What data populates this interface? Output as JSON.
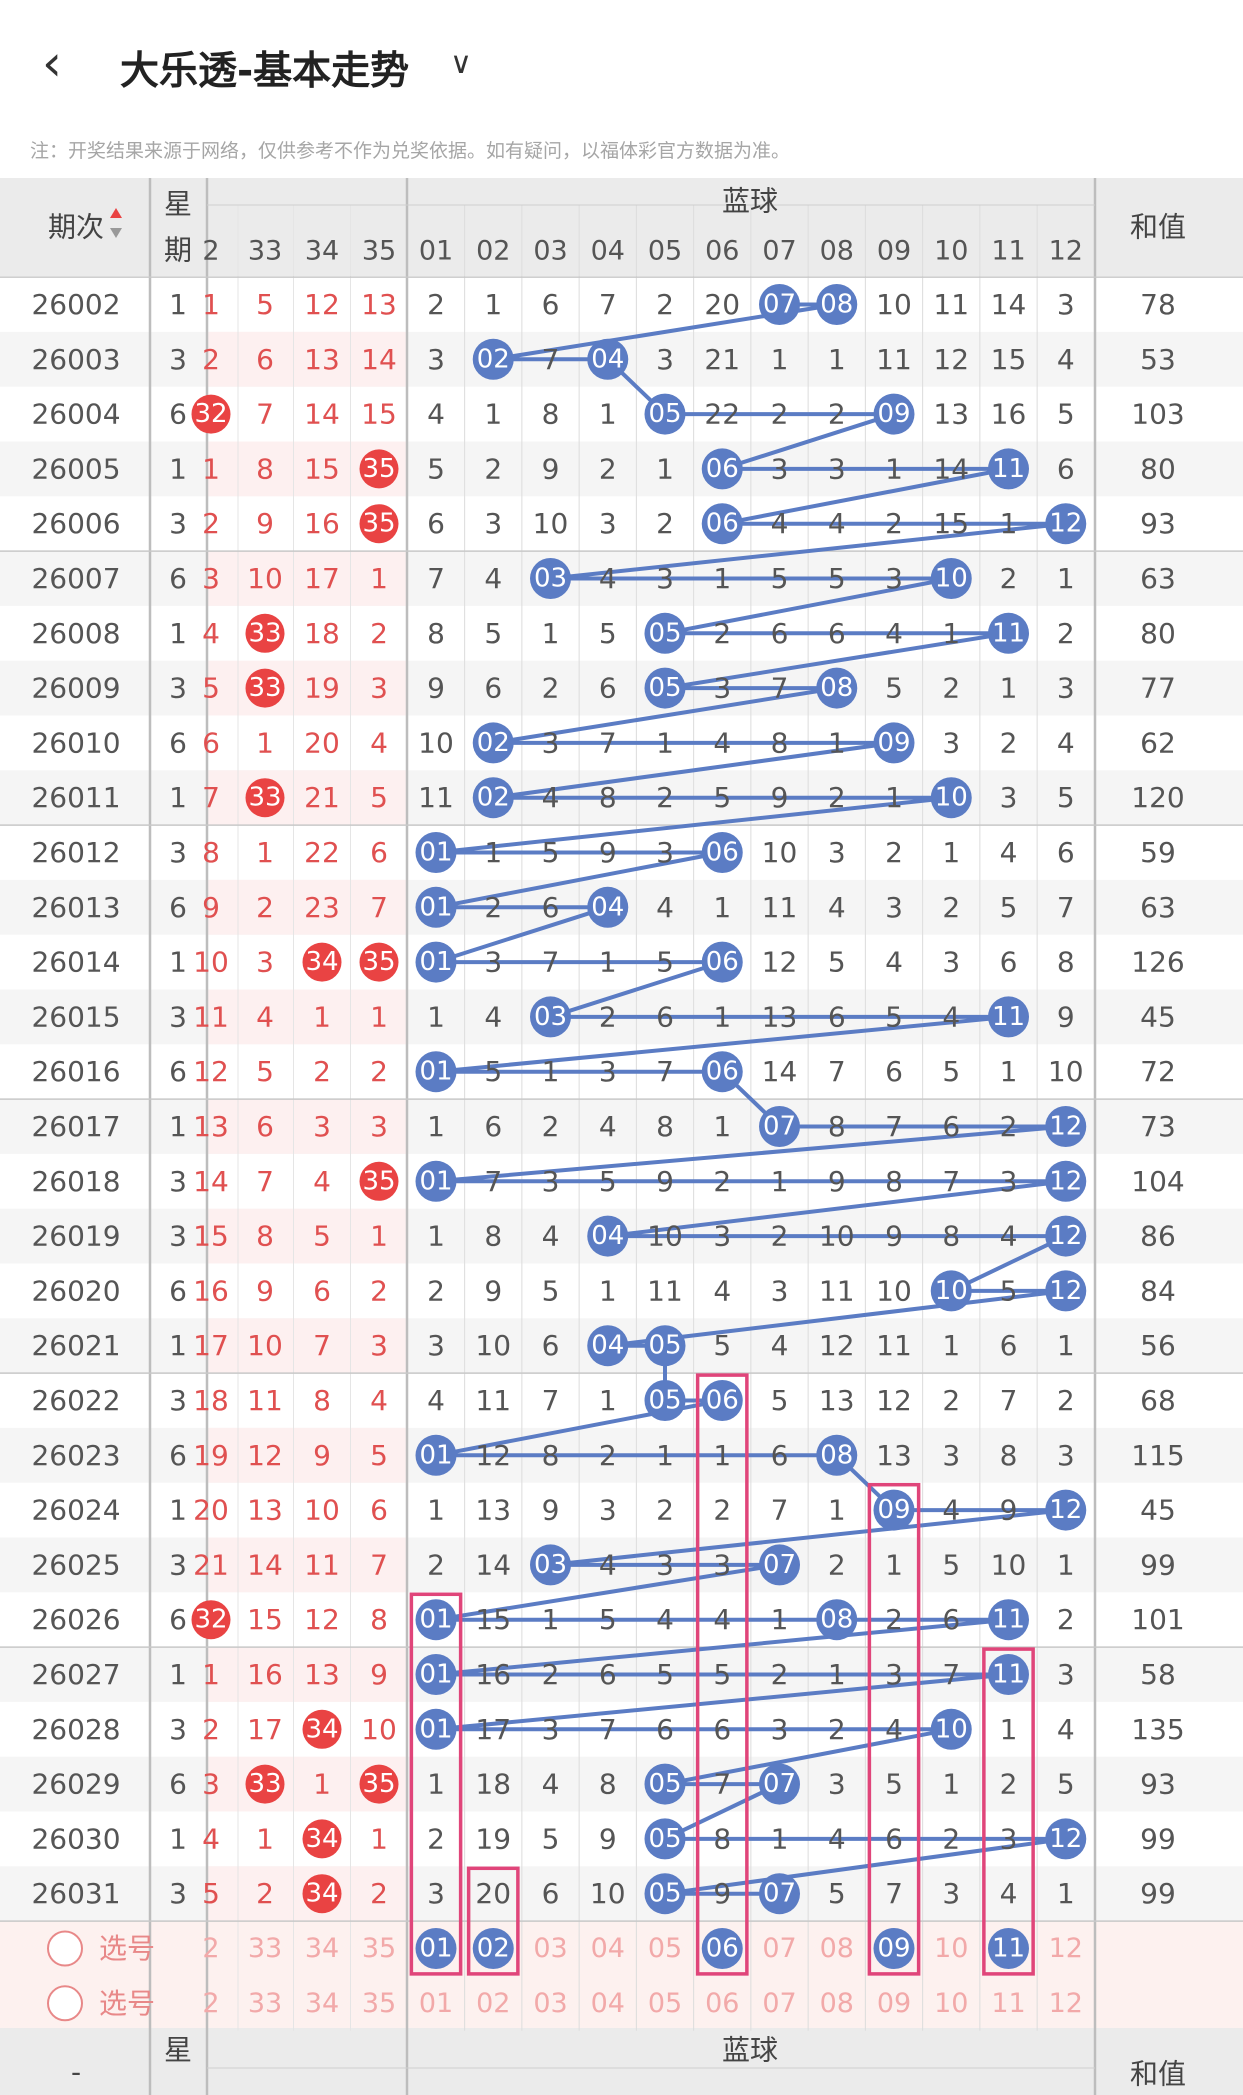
{
  "header": {
    "back_icon": "chevron-left-icon",
    "title": "大乐透-基本走势",
    "dropdown_icon": "chevron-down-icon",
    "note": "注：开奖结果来源于网络，仅供参考不作为兑奖依据。如有疑问，以福体彩官方数据为准。"
  },
  "table": {
    "col_issue": "期次",
    "sort_icon": "sort-icon",
    "col_week": "星\n期",
    "group_blue": "蓝球",
    "col_sum": "和值",
    "front_headers": [
      "2",
      "33",
      "34",
      "35"
    ],
    "blue_headers": [
      "01",
      "02",
      "03",
      "04",
      "05",
      "06",
      "07",
      "08",
      "09",
      "10",
      "11",
      "12"
    ],
    "rows": [
      {
        "issue": "26002",
        "week": "1",
        "front": [
          "1",
          "5",
          "12",
          "13"
        ],
        "front_hit": [
          false,
          false,
          false,
          false
        ],
        "blue": [
          "2",
          "1",
          "6",
          "7",
          "2",
          "20",
          "07",
          "08",
          "10",
          "11",
          "14",
          "3"
        ],
        "sum": "78"
      },
      {
        "issue": "26003",
        "week": "3",
        "front": [
          "2",
          "6",
          "13",
          "14"
        ],
        "front_hit": [
          false,
          false,
          false,
          false
        ],
        "blue": [
          "3",
          "02",
          "7",
          "04",
          "3",
          "21",
          "1",
          "1",
          "11",
          "12",
          "15",
          "4"
        ],
        "sum": "53"
      },
      {
        "issue": "26004",
        "week": "6",
        "front": [
          "32",
          "7",
          "14",
          "15"
        ],
        "front_hit": [
          true,
          false,
          false,
          false
        ],
        "blue": [
          "4",
          "1",
          "8",
          "1",
          "05",
          "22",
          "2",
          "2",
          "09",
          "13",
          "16",
          "5"
        ],
        "sum": "103"
      },
      {
        "issue": "26005",
        "week": "1",
        "front": [
          "1",
          "8",
          "15",
          "35"
        ],
        "front_hit": [
          false,
          false,
          false,
          true
        ],
        "blue": [
          "5",
          "2",
          "9",
          "2",
          "1",
          "06",
          "3",
          "3",
          "1",
          "14",
          "11",
          "6"
        ],
        "sum": "80"
      },
      {
        "issue": "26006",
        "week": "3",
        "front": [
          "2",
          "9",
          "16",
          "35"
        ],
        "front_hit": [
          false,
          false,
          false,
          true
        ],
        "blue": [
          "6",
          "3",
          "10",
          "3",
          "2",
          "06",
          "4",
          "4",
          "2",
          "15",
          "1",
          "12"
        ],
        "sum": "93"
      },
      {
        "issue": "26007",
        "week": "6",
        "front": [
          "3",
          "10",
          "17",
          "1"
        ],
        "front_hit": [
          false,
          false,
          false,
          false
        ],
        "blue": [
          "7",
          "4",
          "03",
          "4",
          "3",
          "1",
          "5",
          "5",
          "3",
          "10",
          "2",
          "1"
        ],
        "sum": "63"
      },
      {
        "issue": "26008",
        "week": "1",
        "front": [
          "4",
          "33",
          "18",
          "2"
        ],
        "front_hit": [
          false,
          true,
          false,
          false
        ],
        "blue": [
          "8",
          "5",
          "1",
          "5",
          "05",
          "2",
          "6",
          "6",
          "4",
          "1",
          "11",
          "2"
        ],
        "sum": "80"
      },
      {
        "issue": "26009",
        "week": "3",
        "front": [
          "5",
          "33",
          "19",
          "3"
        ],
        "front_hit": [
          false,
          true,
          false,
          false
        ],
        "blue": [
          "9",
          "6",
          "2",
          "6",
          "05",
          "3",
          "7",
          "08",
          "5",
          "2",
          "1",
          "3"
        ],
        "sum": "77"
      },
      {
        "issue": "26010",
        "week": "6",
        "front": [
          "6",
          "1",
          "20",
          "4"
        ],
        "front_hit": [
          false,
          false,
          false,
          false
        ],
        "blue": [
          "10",
          "02",
          "3",
          "7",
          "1",
          "4",
          "8",
          "1",
          "09",
          "3",
          "2",
          "4"
        ],
        "sum": "62"
      },
      {
        "issue": "26011",
        "week": "1",
        "front": [
          "7",
          "33",
          "21",
          "5"
        ],
        "front_hit": [
          false,
          true,
          false,
          false
        ],
        "blue": [
          "11",
          "02",
          "4",
          "8",
          "2",
          "5",
          "9",
          "2",
          "1",
          "10",
          "3",
          "5"
        ],
        "sum": "120"
      },
      {
        "issue": "26012",
        "week": "3",
        "front": [
          "8",
          "1",
          "22",
          "6"
        ],
        "front_hit": [
          false,
          false,
          false,
          false
        ],
        "blue": [
          "01",
          "1",
          "5",
          "9",
          "3",
          "06",
          "10",
          "3",
          "2",
          "1",
          "4",
          "6"
        ],
        "sum": "59"
      },
      {
        "issue": "26013",
        "week": "6",
        "front": [
          "9",
          "2",
          "23",
          "7"
        ],
        "front_hit": [
          false,
          false,
          false,
          false
        ],
        "blue": [
          "01",
          "2",
          "6",
          "04",
          "4",
          "1",
          "11",
          "4",
          "3",
          "2",
          "5",
          "7"
        ],
        "sum": "63"
      },
      {
        "issue": "26014",
        "week": "1",
        "front": [
          "10",
          "3",
          "34",
          "35"
        ],
        "front_hit": [
          false,
          false,
          true,
          true
        ],
        "blue": [
          "01",
          "3",
          "7",
          "1",
          "5",
          "06",
          "12",
          "5",
          "4",
          "3",
          "6",
          "8"
        ],
        "sum": "126"
      },
      {
        "issue": "26015",
        "week": "3",
        "front": [
          "11",
          "4",
          "1",
          "1"
        ],
        "front_hit": [
          false,
          false,
          false,
          false
        ],
        "blue": [
          "1",
          "4",
          "03",
          "2",
          "6",
          "1",
          "13",
          "6",
          "5",
          "4",
          "11",
          "9"
        ],
        "sum": "45"
      },
      {
        "issue": "26016",
        "week": "6",
        "front": [
          "12",
          "5",
          "2",
          "2"
        ],
        "front_hit": [
          false,
          false,
          false,
          false
        ],
        "blue": [
          "01",
          "5",
          "1",
          "3",
          "7",
          "06",
          "14",
          "7",
          "6",
          "5",
          "1",
          "10"
        ],
        "sum": "72"
      },
      {
        "issue": "26017",
        "week": "1",
        "front": [
          "13",
          "6",
          "3",
          "3"
        ],
        "front_hit": [
          false,
          false,
          false,
          false
        ],
        "blue": [
          "1",
          "6",
          "2",
          "4",
          "8",
          "1",
          "07",
          "8",
          "7",
          "6",
          "2",
          "12"
        ],
        "sum": "73"
      },
      {
        "issue": "26018",
        "week": "3",
        "front": [
          "14",
          "7",
          "4",
          "35"
        ],
        "front_hit": [
          false,
          false,
          false,
          true
        ],
        "blue": [
          "01",
          "7",
          "3",
          "5",
          "9",
          "2",
          "1",
          "9",
          "8",
          "7",
          "3",
          "12"
        ],
        "sum": "104"
      },
      {
        "issue": "26019",
        "week": "3",
        "front": [
          "15",
          "8",
          "5",
          "1"
        ],
        "front_hit": [
          false,
          false,
          false,
          false
        ],
        "blue": [
          "1",
          "8",
          "4",
          "04",
          "10",
          "3",
          "2",
          "10",
          "9",
          "8",
          "4",
          "12"
        ],
        "sum": "86"
      },
      {
        "issue": "26020",
        "week": "6",
        "front": [
          "16",
          "9",
          "6",
          "2"
        ],
        "front_hit": [
          false,
          false,
          false,
          false
        ],
        "blue": [
          "2",
          "9",
          "5",
          "1",
          "11",
          "4",
          "3",
          "11",
          "10",
          "10",
          "5",
          "12"
        ],
        "sum": "84"
      },
      {
        "issue": "26021",
        "week": "1",
        "front": [
          "17",
          "10",
          "7",
          "3"
        ],
        "front_hit": [
          false,
          false,
          false,
          false
        ],
        "blue": [
          "3",
          "10",
          "6",
          "04",
          "05",
          "5",
          "4",
          "12",
          "11",
          "1",
          "6",
          "1"
        ],
        "sum": "56"
      },
      {
        "issue": "26022",
        "week": "3",
        "front": [
          "18",
          "11",
          "8",
          "4"
        ],
        "front_hit": [
          false,
          false,
          false,
          false
        ],
        "blue": [
          "4",
          "11",
          "7",
          "1",
          "05",
          "06",
          "5",
          "13",
          "12",
          "2",
          "7",
          "2"
        ],
        "sum": "68"
      },
      {
        "issue": "26023",
        "week": "6",
        "front": [
          "19",
          "12",
          "9",
          "5"
        ],
        "front_hit": [
          false,
          false,
          false,
          false
        ],
        "blue": [
          "01",
          "12",
          "8",
          "2",
          "1",
          "1",
          "6",
          "08",
          "13",
          "3",
          "8",
          "3"
        ],
        "sum": "115"
      },
      {
        "issue": "26024",
        "week": "1",
        "front": [
          "20",
          "13",
          "10",
          "6"
        ],
        "front_hit": [
          false,
          false,
          false,
          false
        ],
        "blue": [
          "1",
          "13",
          "9",
          "3",
          "2",
          "2",
          "7",
          "1",
          "09",
          "4",
          "9",
          "12"
        ],
        "sum": "45"
      },
      {
        "issue": "26025",
        "week": "3",
        "front": [
          "21",
          "14",
          "11",
          "7"
        ],
        "front_hit": [
          false,
          false,
          false,
          false
        ],
        "blue": [
          "2",
          "14",
          "03",
          "4",
          "3",
          "3",
          "07",
          "2",
          "1",
          "5",
          "10",
          "1"
        ],
        "sum": "99"
      },
      {
        "issue": "26026",
        "week": "6",
        "front": [
          "32",
          "15",
          "12",
          "8"
        ],
        "front_hit": [
          true,
          false,
          false,
          false
        ],
        "blue": [
          "01",
          "15",
          "1",
          "5",
          "4",
          "4",
          "1",
          "08",
          "2",
          "6",
          "11",
          "2"
        ],
        "sum": "101"
      },
      {
        "issue": "26027",
        "week": "1",
        "front": [
          "1",
          "16",
          "13",
          "9"
        ],
        "front_hit": [
          false,
          false,
          false,
          false
        ],
        "blue": [
          "01",
          "16",
          "2",
          "6",
          "5",
          "5",
          "2",
          "1",
          "3",
          "7",
          "11",
          "3"
        ],
        "sum": "58"
      },
      {
        "issue": "26028",
        "week": "3",
        "front": [
          "2",
          "17",
          "34",
          "10"
        ],
        "front_hit": [
          false,
          false,
          true,
          false
        ],
        "blue": [
          "01",
          "17",
          "3",
          "7",
          "6",
          "6",
          "3",
          "2",
          "4",
          "10",
          "1",
          "4"
        ],
        "sum": "135"
      },
      {
        "issue": "26029",
        "week": "6",
        "front": [
          "3",
          "33",
          "1",
          "35"
        ],
        "front_hit": [
          false,
          true,
          false,
          true
        ],
        "blue": [
          "1",
          "18",
          "4",
          "8",
          "05",
          "7",
          "07",
          "3",
          "5",
          "1",
          "2",
          "5"
        ],
        "sum": "93"
      },
      {
        "issue": "26030",
        "week": "1",
        "front": [
          "4",
          "1",
          "34",
          "1"
        ],
        "front_hit": [
          false,
          false,
          true,
          false
        ],
        "blue": [
          "2",
          "19",
          "5",
          "9",
          "05",
          "8",
          "1",
          "4",
          "6",
          "2",
          "3",
          "12"
        ],
        "sum": "99"
      },
      {
        "issue": "26031",
        "week": "3",
        "front": [
          "5",
          "2",
          "34",
          "2"
        ],
        "front_hit": [
          false,
          false,
          true,
          false
        ],
        "blue": [
          "3",
          "20",
          "6",
          "10",
          "05",
          "9",
          "07",
          "5",
          "7",
          "3",
          "4",
          "1"
        ],
        "sum": "99"
      }
    ],
    "select_label": "选号",
    "select_rows": [
      {
        "front": [
          "2",
          "33",
          "34",
          "35"
        ],
        "blue": [
          "01",
          "02",
          "03",
          "04",
          "05",
          "06",
          "07",
          "08",
          "09",
          "10",
          "11",
          "12"
        ],
        "blue_selected": [
          "01",
          "02",
          "06",
          "09",
          "11"
        ]
      },
      {
        "front": [
          "2",
          "33",
          "34",
          "35"
        ],
        "blue": [
          "01",
          "02",
          "03",
          "04",
          "05",
          "06",
          "07",
          "08",
          "09",
          "10",
          "11",
          "12"
        ],
        "blue_selected": []
      }
    ],
    "footer_issue": "-",
    "footer_week": "星",
    "footer_blue": "蓝球",
    "footer_sum": "和值"
  },
  "colors": {
    "blue_ball": "#5b7cc4",
    "red_ball": "#e94343",
    "red_text": "#e05050",
    "pink_frame": "#e0457a",
    "select_bg": "#fdf1ef"
  }
}
